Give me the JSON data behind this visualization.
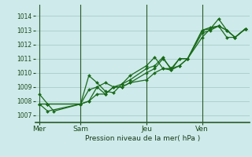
{
  "title": "Pression niveau de la mer( hPa )",
  "bg_color": "#ceeaea",
  "grid_color": "#aacccc",
  "line_color": "#1a6b1a",
  "vline_color": "#2a5a2a",
  "ylim": [
    1006.5,
    1014.8
  ],
  "yticks": [
    1007,
    1008,
    1009,
    1010,
    1011,
    1012,
    1013,
    1014
  ],
  "day_labels": [
    "Mer",
    "Sam",
    "Jeu",
    "Ven"
  ],
  "day_positions": [
    0.0,
    0.2,
    0.52,
    0.79
  ],
  "vline_positions": [
    0.0,
    0.2,
    0.52,
    0.79
  ],
  "series": [
    {
      "x": [
        0.0,
        0.04,
        0.07,
        0.2,
        0.24,
        0.28,
        0.32,
        0.36,
        0.4,
        0.44,
        0.52,
        0.56,
        0.6,
        0.64,
        0.68,
        0.72,
        0.79,
        0.83,
        0.87,
        0.91,
        0.95,
        1.0
      ],
      "y": [
        1008.5,
        1007.8,
        1007.3,
        1007.8,
        1009.8,
        1009.3,
        1008.7,
        1008.6,
        1009.2,
        1009.8,
        1010.5,
        1011.1,
        1010.3,
        1010.2,
        1011.0,
        1011.0,
        1013.0,
        1013.1,
        1013.8,
        1013.0,
        1012.5,
        1013.1
      ]
    },
    {
      "x": [
        0.0,
        0.04,
        0.2,
        0.24,
        0.28,
        0.32,
        0.36,
        0.4,
        0.44,
        0.52,
        0.56,
        0.6,
        0.64,
        0.68,
        0.72,
        0.79,
        0.83,
        0.87,
        0.91,
        0.95,
        1.0
      ],
      "y": [
        1007.8,
        1007.3,
        1007.8,
        1008.0,
        1009.0,
        1009.3,
        1009.0,
        1009.2,
        1009.5,
        1010.3,
        1010.5,
        1011.1,
        1010.2,
        1010.5,
        1011.0,
        1013.0,
        1013.2,
        1013.3,
        1013.0,
        1012.5,
        1013.1
      ]
    },
    {
      "x": [
        0.0,
        0.04,
        0.2,
        0.24,
        0.28,
        0.32,
        0.36,
        0.4,
        0.44,
        0.52,
        0.56,
        0.6,
        0.64,
        0.68,
        0.72,
        0.79,
        0.83,
        0.87,
        0.91,
        0.95,
        1.0
      ],
      "y": [
        1007.8,
        1007.8,
        1007.8,
        1008.8,
        1009.0,
        1008.5,
        1009.0,
        1009.0,
        1009.3,
        1010.0,
        1010.3,
        1011.0,
        1010.3,
        1010.5,
        1011.0,
        1012.8,
        1013.0,
        1013.3,
        1013.0,
        1012.5,
        1013.1
      ]
    },
    {
      "x": [
        0.0,
        0.04,
        0.2,
        0.24,
        0.28,
        0.32,
        0.36,
        0.4,
        0.44,
        0.52,
        0.56,
        0.6,
        0.64,
        0.68,
        0.72,
        0.79,
        0.83,
        0.87,
        0.91,
        0.95,
        1.0
      ],
      "y": [
        1007.8,
        1007.8,
        1007.8,
        1008.0,
        1008.5,
        1008.5,
        1009.0,
        1009.0,
        1009.3,
        1009.5,
        1010.0,
        1010.3,
        1010.3,
        1011.0,
        1011.0,
        1012.5,
        1013.1,
        1013.3,
        1012.5,
        1012.5,
        1013.1
      ]
    }
  ]
}
